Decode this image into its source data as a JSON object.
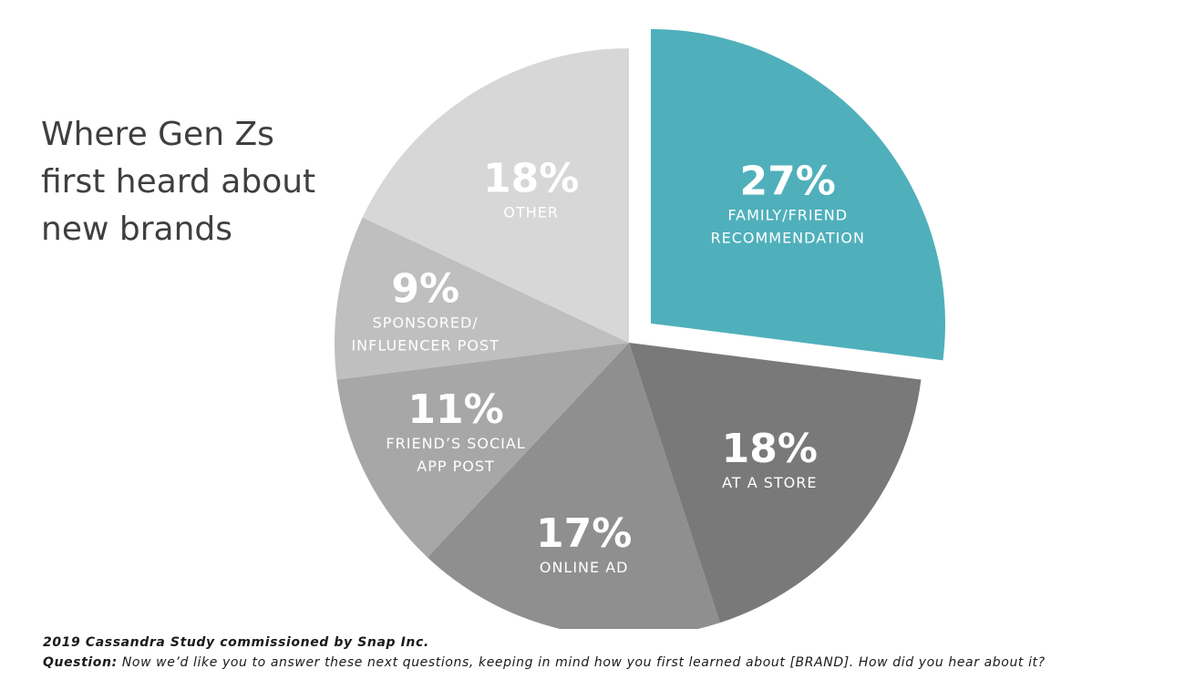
{
  "title_lines": [
    "Where Gen Zs",
    "first heard about",
    "new brands"
  ],
  "chart_data": {
    "type": "pie",
    "unit": "%",
    "slices": [
      {
        "label_lines": [
          "FAMILY/FRIEND",
          "RECOMMENDATION"
        ],
        "value": 27,
        "color": "#4fb0bb",
        "exploded": true
      },
      {
        "label_lines": [
          "AT A STORE"
        ],
        "value": 18,
        "color": "#797979"
      },
      {
        "label_lines": [
          "ONLINE AD"
        ],
        "value": 17,
        "color": "#8f8f8f"
      },
      {
        "label_lines": [
          "FRIEND’S SOCIAL",
          "APP POST"
        ],
        "value": 11,
        "color": "#a7a7a7"
      },
      {
        "label_lines": [
          "SPONSORED/",
          "INFLUENCER POST"
        ],
        "value": 9,
        "color": "#bfbfbf"
      },
      {
        "label_lines": [
          "OTHER"
        ],
        "value": 18,
        "color": "#d7d7d7"
      }
    ]
  },
  "footer": {
    "source": "2019 Cassandra Study commissioned by Snap Inc.",
    "question_label": "Question:",
    "question_text": " Now we’d like you to answer these next questions, keeping in mind how you first learned about [BRAND]. How did you hear about it?"
  }
}
